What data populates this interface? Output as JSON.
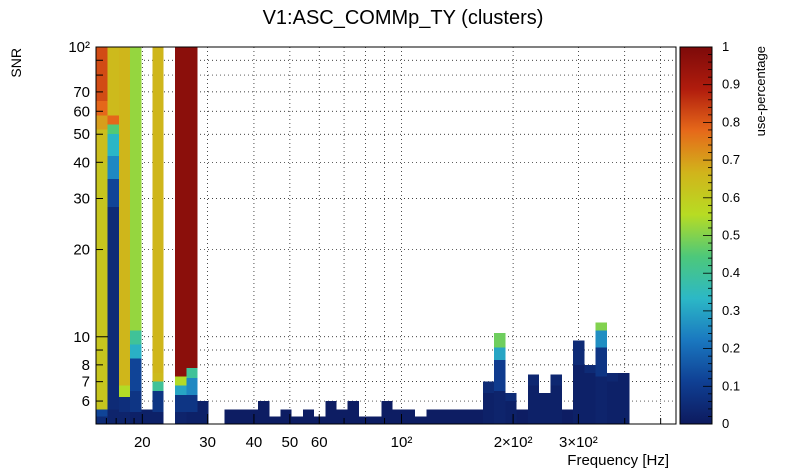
{
  "chart_data": {
    "type": "heatmap",
    "title": "V1:ASC_COMMp_TY (clusters)",
    "xlabel": "Frequency [Hz]",
    "ylabel": "SNR",
    "zlabel": "use-percentage",
    "x_scale": "log",
    "y_scale": "log",
    "xlim": [
      15,
      550
    ],
    "ylim": [
      5,
      100
    ],
    "zlim": [
      0,
      1
    ],
    "grid": true,
    "x_ticks": [
      {
        "value": 20,
        "label": "20"
      },
      {
        "value": 30,
        "label": "30"
      },
      {
        "value": 40,
        "label": "40"
      },
      {
        "value": 50,
        "label": "50"
      },
      {
        "value": 60,
        "label": "60"
      },
      {
        "value": 100,
        "label": "10²"
      },
      {
        "value": 200,
        "label": "2×10²"
      },
      {
        "value": 300,
        "label": "3×10²"
      }
    ],
    "y_ticks": [
      {
        "value": 6,
        "label": "6"
      },
      {
        "value": 7,
        "label": "7"
      },
      {
        "value": 8,
        "label": "8"
      },
      {
        "value": 10,
        "label": "10"
      },
      {
        "value": 20,
        "label": "20"
      },
      {
        "value": 30,
        "label": "30"
      },
      {
        "value": 40,
        "label": "40"
      },
      {
        "value": 50,
        "label": "50"
      },
      {
        "value": 60,
        "label": "60"
      },
      {
        "value": 70,
        "label": "70"
      },
      {
        "value": 100,
        "label": "10²"
      }
    ],
    "z_ticks": [
      {
        "value": 0,
        "label": "0"
      },
      {
        "value": 0.1,
        "label": "0.1"
      },
      {
        "value": 0.2,
        "label": "0.2"
      },
      {
        "value": 0.3,
        "label": "0.3"
      },
      {
        "value": 0.4,
        "label": "0.4"
      },
      {
        "value": 0.5,
        "label": "0.5"
      },
      {
        "value": 0.6,
        "label": "0.6"
      },
      {
        "value": 0.7,
        "label": "0.7"
      },
      {
        "value": 0.8,
        "label": "0.8"
      },
      {
        "value": 0.9,
        "label": "0.9"
      },
      {
        "value": 1,
        "label": "1"
      }
    ],
    "colorscale": [
      "#0d1a5e",
      "#0f3f93",
      "#1a78c0",
      "#2cb8c6",
      "#4dc87a",
      "#b7dc23",
      "#d1b41b",
      "#e6691a",
      "#b01c0d",
      "#7d0a0a"
    ],
    "columns": [
      {
        "f": [
          15.0,
          16.1
        ],
        "cells": [
          [
            5.0,
            5.3,
            0.05
          ],
          [
            5.3,
            5.6,
            0.12
          ],
          [
            5.6,
            40,
            0.62
          ],
          [
            40,
            52,
            0.64
          ],
          [
            52,
            58,
            0.7
          ],
          [
            58,
            65,
            0.78
          ],
          [
            65,
            100,
            0.82
          ]
        ]
      },
      {
        "f": [
          16.1,
          17.3
        ],
        "cells": [
          [
            5.0,
            5.6,
            0.03
          ],
          [
            5.6,
            28,
            0.05
          ],
          [
            28,
            35,
            0.12
          ],
          [
            35,
            42,
            0.25
          ],
          [
            42,
            50,
            0.33
          ],
          [
            50,
            54,
            0.45
          ],
          [
            54,
            58,
            0.78
          ],
          [
            58,
            100,
            0.65
          ]
        ]
      },
      {
        "f": [
          17.3,
          18.5
        ],
        "cells": [
          [
            5.0,
            5.5,
            0.03
          ],
          [
            5.5,
            6.2,
            0.06
          ],
          [
            6.2,
            6.8,
            0.55
          ],
          [
            6.8,
            100,
            0.66
          ]
        ]
      },
      {
        "f": [
          18.5,
          19.9
        ],
        "cells": [
          [
            5.0,
            5.5,
            0.02
          ],
          [
            5.5,
            6.5,
            0.08
          ],
          [
            6.5,
            8.4,
            0.12
          ],
          [
            8.4,
            9.4,
            0.32
          ],
          [
            9.4,
            10.5,
            0.4
          ],
          [
            10.5,
            100,
            0.52
          ]
        ]
      },
      {
        "f": [
          19.9,
          21.3
        ],
        "cells": [
          [
            5.0,
            5.6,
            0.02
          ]
        ]
      },
      {
        "f": [
          21.3,
          22.8
        ],
        "cells": [
          [
            5.0,
            5.5,
            0.02
          ],
          [
            5.5,
            6.5,
            0.08
          ],
          [
            6.5,
            7.0,
            0.4
          ],
          [
            7.0,
            7.5,
            0.65
          ],
          [
            7.5,
            100,
            0.66
          ]
        ]
      },
      {
        "f": [
          24.5,
          26.3
        ],
        "cells": [
          [
            5.0,
            5.5,
            0.03
          ],
          [
            5.5,
            6.3,
            0.08
          ],
          [
            6.3,
            6.8,
            0.3
          ],
          [
            6.8,
            7.3,
            0.55
          ],
          [
            7.3,
            100,
            0.97
          ]
        ]
      },
      {
        "f": [
          26.3,
          28.2
        ],
        "cells": [
          [
            5.0,
            5.5,
            0.02
          ],
          [
            5.5,
            6.3,
            0.08
          ],
          [
            6.3,
            7.2,
            0.25
          ],
          [
            7.2,
            7.8,
            0.4
          ],
          [
            7.8,
            100,
            0.97
          ]
        ]
      },
      {
        "f": [
          28.2,
          30.2
        ],
        "cells": [
          [
            5.0,
            6.0,
            0.02
          ]
        ]
      },
      {
        "f": [
          33.3,
          35.7
        ],
        "cells": [
          [
            5.0,
            5.6,
            0.01
          ]
        ]
      },
      {
        "f": [
          35.7,
          38.3
        ],
        "cells": [
          [
            5.0,
            5.6,
            0.01
          ]
        ]
      },
      {
        "f": [
          38.3,
          41.0
        ],
        "cells": [
          [
            5.0,
            5.6,
            0.01
          ]
        ]
      },
      {
        "f": [
          41.0,
          44.0
        ],
        "cells": [
          [
            5.0,
            6.0,
            0.01
          ]
        ]
      },
      {
        "f": [
          44.0,
          47.1
        ],
        "cells": [
          [
            5.0,
            5.3,
            0.01
          ]
        ]
      },
      {
        "f": [
          47.1,
          50.5
        ],
        "cells": [
          [
            5.0,
            5.6,
            0.01
          ]
        ]
      },
      {
        "f": [
          50.5,
          54.2
        ],
        "cells": [
          [
            5.0,
            5.3,
            0.01
          ]
        ]
      },
      {
        "f": [
          54.2,
          58.1
        ],
        "cells": [
          [
            5.0,
            5.6,
            0.01
          ]
        ]
      },
      {
        "f": [
          58.1,
          62.3
        ],
        "cells": [
          [
            5.0,
            5.3,
            0.01
          ]
        ]
      },
      {
        "f": [
          62.3,
          66.8
        ],
        "cells": [
          [
            5.0,
            6.0,
            0.01
          ]
        ]
      },
      {
        "f": [
          66.8,
          71.6
        ],
        "cells": [
          [
            5.0,
            5.6,
            0.01
          ]
        ]
      },
      {
        "f": [
          71.6,
          76.8
        ],
        "cells": [
          [
            5.0,
            6.0,
            0.01
          ]
        ]
      },
      {
        "f": [
          76.8,
          82.3
        ],
        "cells": [
          [
            5.0,
            5.3,
            0.01
          ]
        ]
      },
      {
        "f": [
          82.3,
          88.3
        ],
        "cells": [
          [
            5.0,
            5.3,
            0.01
          ]
        ]
      },
      {
        "f": [
          88.3,
          94.7
        ],
        "cells": [
          [
            5.0,
            6.0,
            0.01
          ]
        ]
      },
      {
        "f": [
          94.7,
          101.6
        ],
        "cells": [
          [
            5.0,
            5.6,
            0.01
          ]
        ]
      },
      {
        "f": [
          101.6,
          108.9
        ],
        "cells": [
          [
            5.0,
            5.6,
            0.01
          ]
        ]
      },
      {
        "f": [
          108.9,
          116.8
        ],
        "cells": [
          [
            5.0,
            5.3,
            0.01
          ]
        ]
      },
      {
        "f": [
          116.8,
          125.3
        ],
        "cells": [
          [
            5.0,
            5.6,
            0.01
          ]
        ]
      },
      {
        "f": [
          125.3,
          134.4
        ],
        "cells": [
          [
            5.0,
            5.6,
            0.01
          ]
        ]
      },
      {
        "f": [
          134.4,
          144.1
        ],
        "cells": [
          [
            5.0,
            5.6,
            0.01
          ]
        ]
      },
      {
        "f": [
          144.1,
          154.6
        ],
        "cells": [
          [
            5.0,
            5.6,
            0.01
          ]
        ]
      },
      {
        "f": [
          154.6,
          165.8
        ],
        "cells": [
          [
            5.0,
            5.6,
            0.01
          ]
        ]
      },
      {
        "f": [
          165.8,
          177.8
        ],
        "cells": [
          [
            5.0,
            6.4,
            0.02
          ],
          [
            6.4,
            7.0,
            0.05
          ]
        ]
      },
      {
        "f": [
          177.8,
          190.7
        ],
        "cells": [
          [
            5.0,
            6.5,
            0.03
          ],
          [
            6.5,
            8.3,
            0.1
          ],
          [
            8.3,
            9.2,
            0.3
          ],
          [
            9.2,
            10.3,
            0.48
          ]
        ]
      },
      {
        "f": [
          190.7,
          204.5
        ],
        "cells": [
          [
            5.0,
            6.0,
            0.02
          ],
          [
            6.0,
            6.4,
            0.05
          ]
        ]
      },
      {
        "f": [
          204.5,
          219.3
        ],
        "cells": [
          [
            5.0,
            5.6,
            0.01
          ]
        ]
      },
      {
        "f": [
          219.3,
          235.2
        ],
        "cells": [
          [
            5.0,
            6.8,
            0.02
          ],
          [
            6.8,
            7.4,
            0.04
          ]
        ]
      },
      {
        "f": [
          235.2,
          252.3
        ],
        "cells": [
          [
            5.0,
            6.4,
            0.02
          ]
        ]
      },
      {
        "f": [
          252.3,
          270.6
        ],
        "cells": [
          [
            5.0,
            6.8,
            0.02
          ],
          [
            6.8,
            7.4,
            0.04
          ]
        ]
      },
      {
        "f": [
          270.6,
          290.2
        ],
        "cells": [
          [
            5.0,
            5.6,
            0.01
          ]
        ]
      },
      {
        "f": [
          290.2,
          311.3
        ],
        "cells": [
          [
            5.0,
            8.0,
            0.02
          ],
          [
            8.0,
            9.7,
            0.05
          ]
        ]
      },
      {
        "f": [
          311.3,
          333.9
        ],
        "cells": [
          [
            5.0,
            7.5,
            0.02
          ],
          [
            7.5,
            8.0,
            0.05
          ]
        ]
      },
      {
        "f": [
          333.9,
          358.1
        ],
        "cells": [
          [
            5.0,
            7.3,
            0.03
          ],
          [
            7.3,
            9.2,
            0.08
          ],
          [
            9.2,
            10.5,
            0.26
          ],
          [
            10.5,
            11.2,
            0.5
          ]
        ]
      },
      {
        "f": [
          358.1,
          384.1
        ],
        "cells": [
          [
            5.0,
            7.0,
            0.02
          ],
          [
            7.0,
            7.5,
            0.04
          ]
        ]
      },
      {
        "f": [
          384.1,
          412.0
        ],
        "cells": [
          [
            5.0,
            7.5,
            0.02
          ]
        ]
      }
    ]
  }
}
